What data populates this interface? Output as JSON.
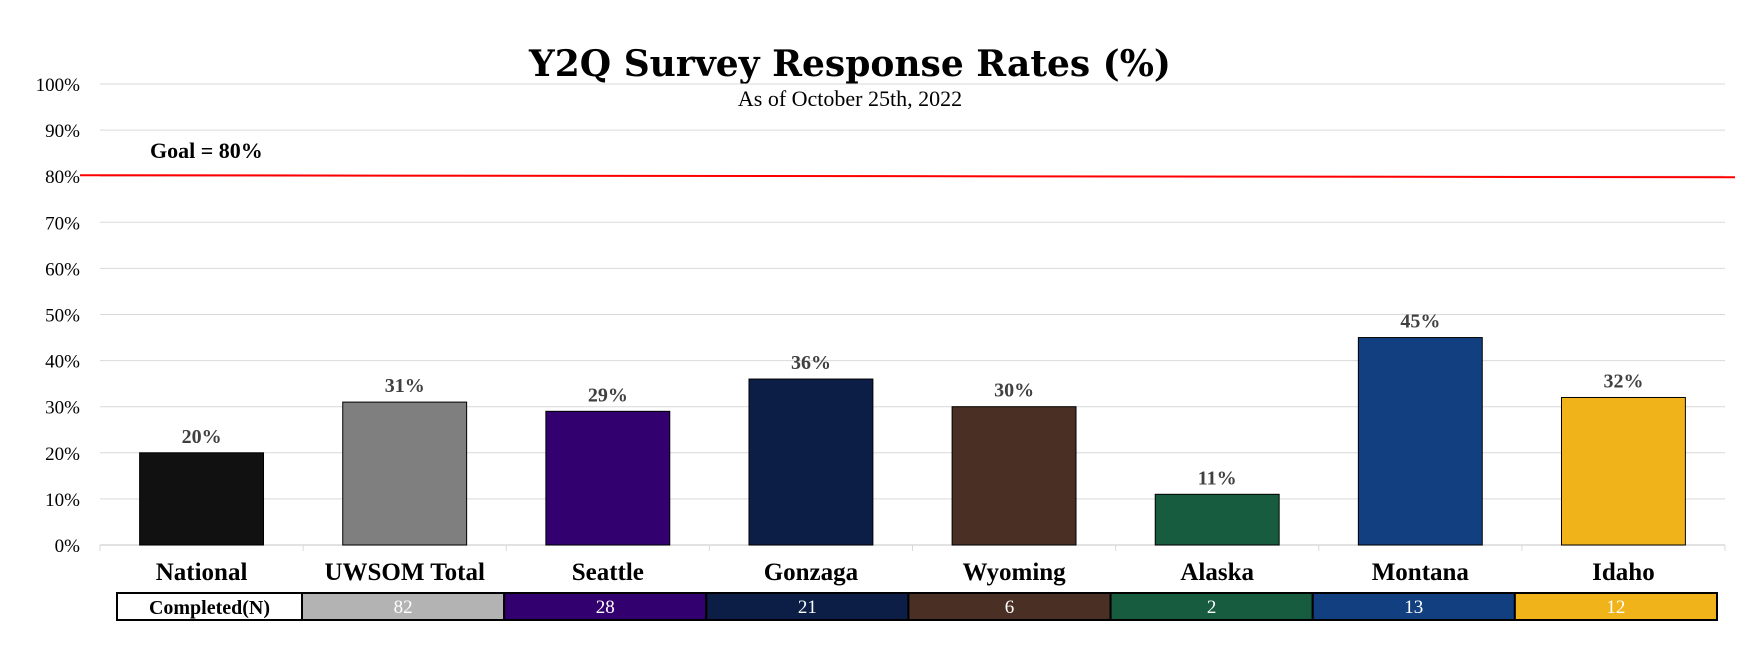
{
  "chart_data": {
    "type": "bar",
    "title": "Y2Q Survey Response Rates (%)",
    "subtitle": "As of October 25th, 2022",
    "categories": [
      "National",
      "UWSOM Total",
      "Seattle",
      "Gonzaga",
      "Wyoming",
      "Alaska",
      "Montana",
      "Idaho"
    ],
    "values": [
      20,
      31,
      29,
      36,
      30,
      11,
      45,
      32
    ],
    "value_labels": [
      "20%",
      "31%",
      "29%",
      "36%",
      "30%",
      "11%",
      "45%",
      "32%"
    ],
    "colors": [
      "#111111",
      "#7f7f7f",
      "#33006f",
      "#0c1e45",
      "#4a3024",
      "#185c40",
      "#123f80",
      "#f0b31a"
    ],
    "ylim": [
      0,
      100
    ],
    "yticks": [
      "0%",
      "10%",
      "20%",
      "30%",
      "40%",
      "50%",
      "60%",
      "70%",
      "80%",
      "90%",
      "100%"
    ],
    "grid": true,
    "goal": {
      "value": 80,
      "label": "Goal = 80%",
      "color": "#ff0000"
    }
  },
  "completed_table": {
    "header": "Completed(N)",
    "rows": [
      {
        "value": "82",
        "fill": "#b3b3b3",
        "text_color": "#ffffff"
      },
      {
        "value": "28",
        "fill": "#33006f",
        "text_color": "#ffffff"
      },
      {
        "value": "21",
        "fill": "#0c1e45",
        "text_color": "#ffffff"
      },
      {
        "value": "6",
        "fill": "#4a3024",
        "text_color": "#ffffff"
      },
      {
        "value": "2",
        "fill": "#185c40",
        "text_color": "#ffffff"
      },
      {
        "value": "13",
        "fill": "#123f80",
        "text_color": "#ffffff"
      },
      {
        "value": "12",
        "fill": "#f0b31a",
        "text_color": "#ffffff"
      }
    ]
  }
}
